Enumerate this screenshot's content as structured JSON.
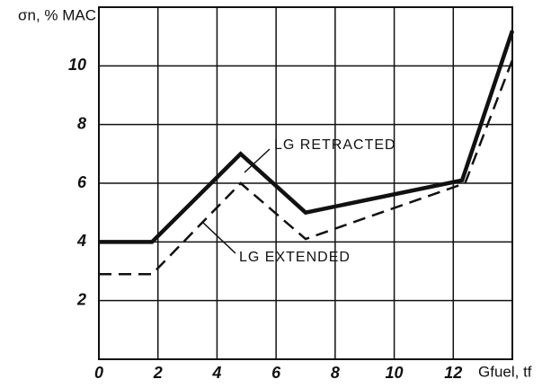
{
  "chart_data": {
    "type": "line",
    "y_label": "σn, % MAC",
    "x_label": "Gfuel, tf",
    "annotations": [
      "LG RETRACTED",
      "LG EXTENDED"
    ],
    "series": [
      {
        "name": "LG RETRACTED",
        "color": "#111111",
        "dash": false,
        "x": [
          0,
          1.8,
          4.8,
          7,
          12.3,
          14
        ],
        "values": [
          4,
          4,
          7,
          5,
          6.1,
          11.2
        ]
      },
      {
        "name": "LG EXTENDED",
        "color": "#111111",
        "dash": true,
        "x": [
          0,
          1.8,
          4.8,
          7,
          12.4,
          14
        ],
        "values": [
          2.9,
          2.9,
          6,
          4.1,
          6,
          10.2
        ]
      }
    ],
    "xlim": [
      0,
      14
    ],
    "ylim": [
      0,
      12
    ],
    "xticks": [
      0,
      2,
      4,
      6,
      8,
      10,
      12
    ],
    "yticks": [
      2,
      4,
      6,
      8,
      10
    ],
    "grid": true
  }
}
